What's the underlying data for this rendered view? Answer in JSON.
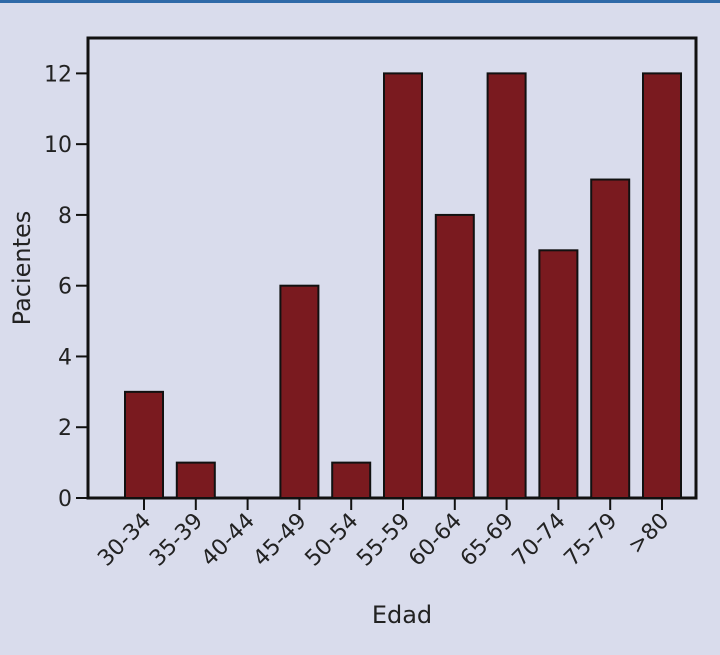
{
  "chart_data": {
    "type": "bar",
    "categories": [
      "30-34",
      "35-39",
      "40-44",
      "45-49",
      "50-54",
      "55-59",
      "60-64",
      "65-69",
      "70-74",
      "75-79",
      ">80"
    ],
    "values": [
      3,
      1,
      0,
      6,
      1,
      12,
      8,
      12,
      7,
      9,
      12
    ],
    "xlabel": "Edad",
    "ylabel": "Pacientes",
    "ylim": [
      0,
      13
    ],
    "yticks": [
      0,
      2,
      4,
      6,
      8,
      10,
      12
    ],
    "grid": false,
    "colors": {
      "bar": "#7a1a1f",
      "bar_edge": "#111111",
      "background": "#d9dcec",
      "accent": "#2f6aa8"
    }
  }
}
